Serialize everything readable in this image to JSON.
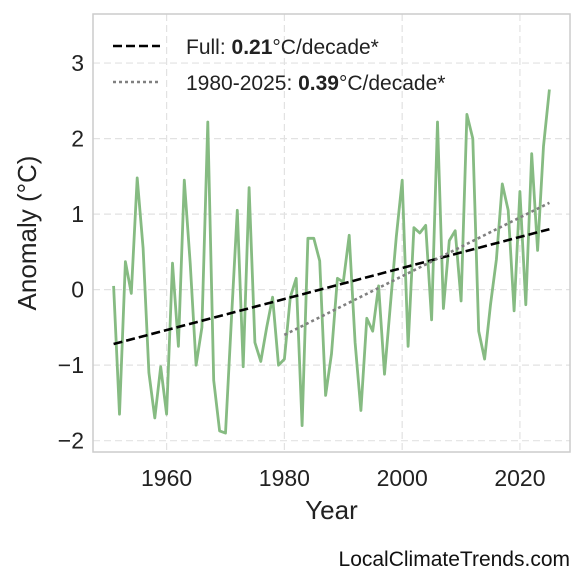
{
  "chart_data": {
    "type": "line",
    "title": "",
    "xlabel": "Year",
    "ylabel": "Anomaly (°C)",
    "xlim": [
      1947.5,
      2028.5
    ],
    "ylim": [
      -2.15,
      3.65
    ],
    "xticks": [
      1960,
      1980,
      2000,
      2020
    ],
    "xtick_labels": [
      "1960",
      "1980",
      "2000",
      "2020"
    ],
    "yticks": [
      -2,
      -1,
      0,
      1,
      2,
      3
    ],
    "ytick_labels": [
      "−2",
      "−1",
      "0",
      "1",
      "2",
      "3"
    ],
    "grid": true,
    "legend_position": "top-left",
    "series": [
      {
        "kind": "data",
        "color": "#86bb82",
        "x": [
          1951,
          1952,
          1953,
          1954,
          1955,
          1956,
          1957,
          1958,
          1959,
          1960,
          1961,
          1962,
          1963,
          1964,
          1965,
          1966,
          1967,
          1968,
          1969,
          1970,
          1971,
          1972,
          1973,
          1974,
          1975,
          1976,
          1977,
          1978,
          1979,
          1980,
          1981,
          1982,
          1983,
          1984,
          1985,
          1986,
          1987,
          1988,
          1989,
          1990,
          1991,
          1992,
          1993,
          1994,
          1995,
          1996,
          1997,
          1998,
          1999,
          2000,
          2001,
          2002,
          2003,
          2004,
          2005,
          2006,
          2007,
          2008,
          2009,
          2010,
          2011,
          2012,
          2013,
          2014,
          2015,
          2016,
          2017,
          2018,
          2019,
          2020,
          2021,
          2022,
          2023,
          2024,
          2025
        ],
        "y": [
          0.05,
          -1.65,
          0.37,
          -0.05,
          1.48,
          0.55,
          -1.1,
          -1.7,
          -1.02,
          -1.65,
          0.35,
          -0.75,
          1.45,
          0.35,
          -1.0,
          -0.5,
          2.22,
          -1.2,
          -1.87,
          -1.9,
          -0.4,
          1.05,
          -1.02,
          1.35,
          -0.7,
          -0.95,
          -0.5,
          -0.1,
          -1.0,
          -0.92,
          -0.1,
          0.15,
          -1.8,
          0.68,
          0.68,
          0.38,
          -1.4,
          -0.85,
          0.15,
          0.1,
          0.72,
          -0.7,
          -1.6,
          -0.38,
          -0.55,
          0.05,
          -1.12,
          -0.2,
          0.7,
          1.45,
          -0.75,
          0.82,
          0.75,
          0.85,
          -0.4,
          2.22,
          -0.25,
          0.65,
          0.78,
          -0.15,
          2.32,
          2.0,
          -0.55,
          -0.92,
          -0.2,
          0.4,
          1.4,
          1.05,
          -0.28,
          1.3,
          -0.2,
          1.8,
          0.52,
          1.9,
          2.65
        ]
      },
      {
        "kind": "trend",
        "name": "Full",
        "rate_label": "0.21",
        "rate_unit": "°C/decade*",
        "style": "dashed",
        "color": "#000000",
        "x": [
          1951,
          2025
        ],
        "y": [
          -0.72,
          0.8
        ]
      },
      {
        "kind": "trend",
        "name": "1980-2025",
        "rate_label": "0.39",
        "rate_unit": "°C/decade*",
        "style": "dotted",
        "color": "#808080",
        "x": [
          1980,
          2025
        ],
        "y": [
          -0.6,
          1.15
        ]
      }
    ]
  },
  "credit": "LocalClimateTrends.com"
}
